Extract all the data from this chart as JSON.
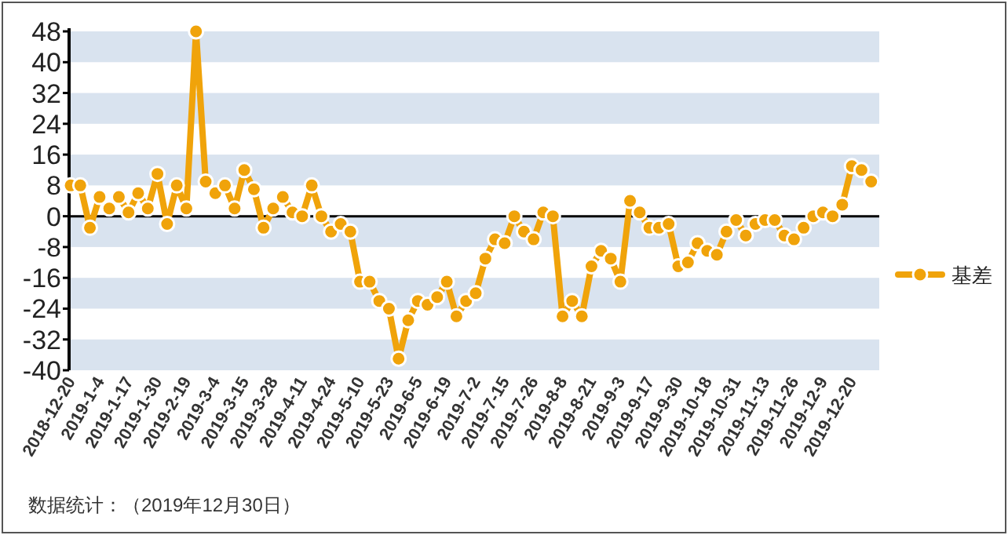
{
  "chart_data": {
    "type": "line",
    "categories": [
      "2018-12-20",
      null,
      null,
      "2019-1-4",
      null,
      null,
      "2019-1-17",
      null,
      null,
      "2019-1-30",
      null,
      null,
      "2019-2-19",
      null,
      null,
      "2019-3-4",
      null,
      null,
      "2019-3-15",
      null,
      null,
      "2019-3-28",
      null,
      null,
      "2019-4-11",
      null,
      null,
      "2019-4-24",
      null,
      null,
      "2019-5-10",
      null,
      null,
      "2019-5-23",
      null,
      null,
      "2019-6-5",
      null,
      null,
      "2019-6-19",
      null,
      null,
      "2019-7-2",
      null,
      null,
      "2019-7-15",
      null,
      null,
      "2019-7-26",
      null,
      null,
      "2019-8-8",
      null,
      null,
      "2019-8-21",
      null,
      null,
      "2019-9-3",
      null,
      null,
      "2019-9-17",
      null,
      null,
      "2019-9-30",
      null,
      null,
      "2019-10-18",
      null,
      null,
      "2019-10-31",
      null,
      null,
      "2019-11-13",
      null,
      null,
      "2019-11-26",
      null,
      null,
      "2019-12-9",
      null,
      null,
      "2019-12-20",
      null,
      null
    ],
    "series": [
      {
        "name": "基差",
        "color": "#f0a30a",
        "values": [
          8,
          8,
          -3,
          5,
          2,
          5,
          1,
          6,
          2,
          11,
          -2,
          8,
          2,
          48,
          9,
          6,
          8,
          2,
          12,
          7,
          -3,
          2,
          5,
          1,
          0,
          8,
          0,
          -4,
          -2,
          -4,
          -17,
          -17,
          -22,
          -24,
          -37,
          -27,
          -22,
          -23,
          -21,
          -17,
          -26,
          -22,
          -20,
          -11,
          -6,
          -7,
          0,
          -4,
          -6,
          1,
          0,
          -26,
          -22,
          -26,
          -13,
          -9,
          -11,
          -17,
          4,
          1,
          -3,
          -3,
          -2,
          -13,
          -12,
          -7,
          -9,
          -10,
          -4,
          -1,
          -5,
          -2,
          -1,
          -1,
          -5,
          -6,
          -3,
          0,
          1,
          0,
          3,
          13,
          12,
          9
        ]
      }
    ],
    "ylim": [
      -40,
      48
    ],
    "yticks": [
      -40,
      -32,
      -24,
      -16,
      -8,
      0,
      8,
      16,
      24,
      32,
      40,
      48
    ],
    "grid": "y",
    "legend": "right",
    "marker": "circle",
    "line_style": "solid",
    "annotations": [
      "数据统计：（2019年12月30日）"
    ]
  }
}
